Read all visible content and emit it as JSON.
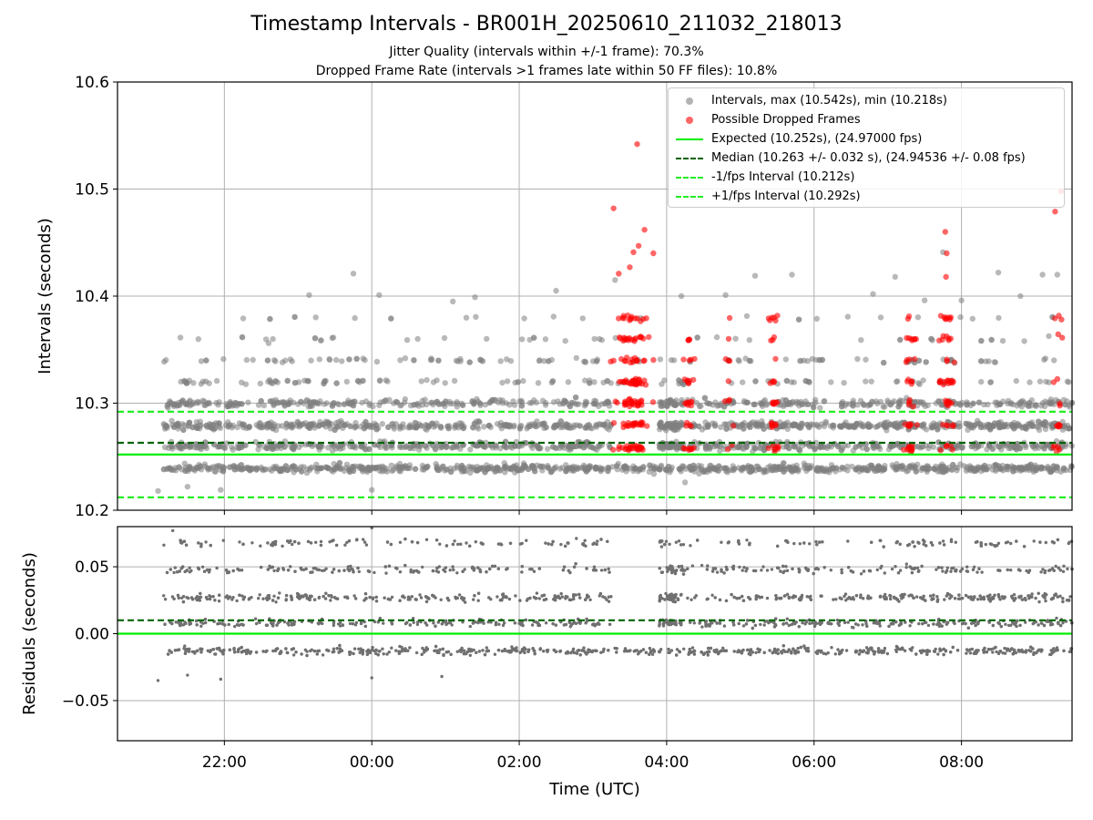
{
  "title": "Timestamp Intervals - BR001H_20250610_211032_218013",
  "subtitle_1": "Jitter Quality (intervals within +/-1 frame): 70.3%",
  "subtitle_2": "Dropped Frame Rate (intervals >1 frames late within 50 FF files): 10.8%",
  "colors": {
    "intervals": "#808080",
    "dropped": "#ff0000",
    "expected": "#00ee00",
    "median": "#006400",
    "fps_bounds": "#22ee22",
    "grid": "#b0b0b0"
  },
  "legend": [
    {
      "label": "Intervals, max (10.542s), min (10.218s)",
      "kind": "dot",
      "color": "#808080"
    },
    {
      "label": "Possible Dropped Frames",
      "kind": "dot",
      "color": "#ff0000"
    },
    {
      "label": "Expected (10.252s), (24.97000 fps)",
      "kind": "solid",
      "color": "#00ee00"
    },
    {
      "label": "Median (10.263 +/- 0.032 s), (24.94536 +/- 0.08 fps)",
      "kind": "dashed",
      "color": "#006400"
    },
    {
      "label": "-1/fps Interval (10.212s)",
      "kind": "dashed",
      "color": "#22ee22"
    },
    {
      "label": "+1/fps Interval (10.292s)",
      "kind": "dashed",
      "color": "#22ee22"
    }
  ],
  "chart_data": [
    {
      "type": "scatter",
      "panel": "top",
      "ylabel": "Intervals (seconds)",
      "ylim": [
        10.2,
        10.6
      ],
      "yticks": [
        "10.2",
        "10.3",
        "10.4",
        "10.5",
        "10.6"
      ],
      "xlim_hours": [
        20.55,
        33.5
      ],
      "grid": true,
      "legend_position": "upper right",
      "reference_lines": [
        {
          "name": "expected",
          "y": 10.252,
          "style": "solid"
        },
        {
          "name": "median",
          "y": 10.263,
          "style": "dashed"
        },
        {
          "name": "minus_1_fps",
          "y": 10.212,
          "style": "dashed"
        },
        {
          "name": "plus_1_fps",
          "y": 10.292,
          "style": "dashed"
        }
      ],
      "series": [
        {
          "name": "Intervals",
          "bands": [
            10.239,
            10.26,
            10.279,
            10.3,
            10.32,
            10.34,
            10.36,
            10.38
          ],
          "band_weights": [
            30,
            22,
            26,
            18,
            5,
            4,
            1.5,
            1
          ],
          "time_range": [
            "21:10",
            "09:30"
          ],
          "outliers": [
            [
              21.1,
              10.218
            ],
            [
              21.5,
              10.222
            ],
            [
              21.95,
              10.219
            ],
            [
              23.15,
              10.401
            ],
            [
              23.75,
              10.421
            ],
            [
              24.1,
              10.401
            ],
            [
              25.1,
              10.395
            ],
            [
              25.4,
              10.399
            ],
            [
              26.5,
              10.405
            ],
            [
              27.3,
              10.415
            ],
            [
              28.2,
              10.4
            ],
            [
              28.8,
              10.401
            ],
            [
              29.2,
              10.419
            ],
            [
              29.7,
              10.42
            ],
            [
              30.8,
              10.402
            ],
            [
              31.1,
              10.418
            ],
            [
              31.5,
              10.396
            ],
            [
              31.75,
              10.441
            ],
            [
              32.0,
              10.396
            ],
            [
              32.5,
              10.422
            ],
            [
              32.8,
              10.4
            ],
            [
              33.1,
              10.42
            ],
            [
              33.3,
              10.42
            ],
            [
              28.25,
              10.226
            ],
            [
              24.0,
              10.219
            ],
            [
              22.6,
              10.356
            ]
          ],
          "min": 10.218,
          "max": 10.542
        },
        {
          "name": "Possible Dropped Frames",
          "clusters": [
            {
              "center_hours": 27.55,
              "spread": 0.22,
              "n": 150
            },
            {
              "center_hours": 28.3,
              "spread": 0.07,
              "n": 35
            },
            {
              "center_hours": 28.85,
              "spread": 0.05,
              "n": 12
            },
            {
              "center_hours": 29.45,
              "spread": 0.07,
              "n": 35
            },
            {
              "center_hours": 31.3,
              "spread": 0.07,
              "n": 40
            },
            {
              "center_hours": 31.8,
              "spread": 0.09,
              "n": 50
            },
            {
              "center_hours": 33.3,
              "spread": 0.06,
              "n": 20
            }
          ],
          "outliers": [
            [
              27.28,
              10.482
            ],
            [
              27.6,
              10.542
            ],
            [
              27.7,
              10.462
            ],
            [
              27.55,
              10.441
            ],
            [
              27.82,
              10.44
            ],
            [
              27.35,
              10.421
            ],
            [
              27.5,
              10.427
            ],
            [
              27.62,
              10.447
            ],
            [
              31.78,
              10.46
            ],
            [
              31.8,
              10.44
            ],
            [
              31.79,
              10.418
            ],
            [
              33.27,
              10.479
            ],
            [
              33.35,
              10.498
            ]
          ]
        }
      ]
    },
    {
      "type": "scatter",
      "panel": "bottom",
      "ylabel": "Residuals (seconds)",
      "xlabel": "Time (UTC)",
      "ylim": [
        -0.08,
        0.08
      ],
      "yticks": [
        "−0.05",
        "0.00",
        "0.05"
      ],
      "xticks": [
        "22:00",
        "00:00",
        "02:00",
        "04:00",
        "06:00",
        "08:00"
      ],
      "xtick_hours": [
        22,
        24,
        26,
        28,
        30,
        32
      ],
      "grid": true,
      "reference_lines": [
        {
          "name": "zero",
          "y": 0.0,
          "style": "solid"
        },
        {
          "name": "median_residual",
          "y": 0.01,
          "style": "dashed"
        }
      ],
      "series": [
        {
          "name": "Residuals",
          "bands": [
            -0.013,
            0.008,
            0.027,
            0.048,
            0.068
          ],
          "band_weights": [
            30,
            22,
            26,
            18,
            10
          ],
          "outliers": [
            [
              21.1,
              -0.035
            ],
            [
              21.95,
              -0.034
            ],
            [
              24.0,
              -0.033
            ],
            [
              24.95,
              -0.032
            ],
            [
              21.5,
              -0.031
            ],
            [
              21.3,
              0.077
            ],
            [
              24.0,
              0.079
            ]
          ]
        }
      ]
    }
  ]
}
